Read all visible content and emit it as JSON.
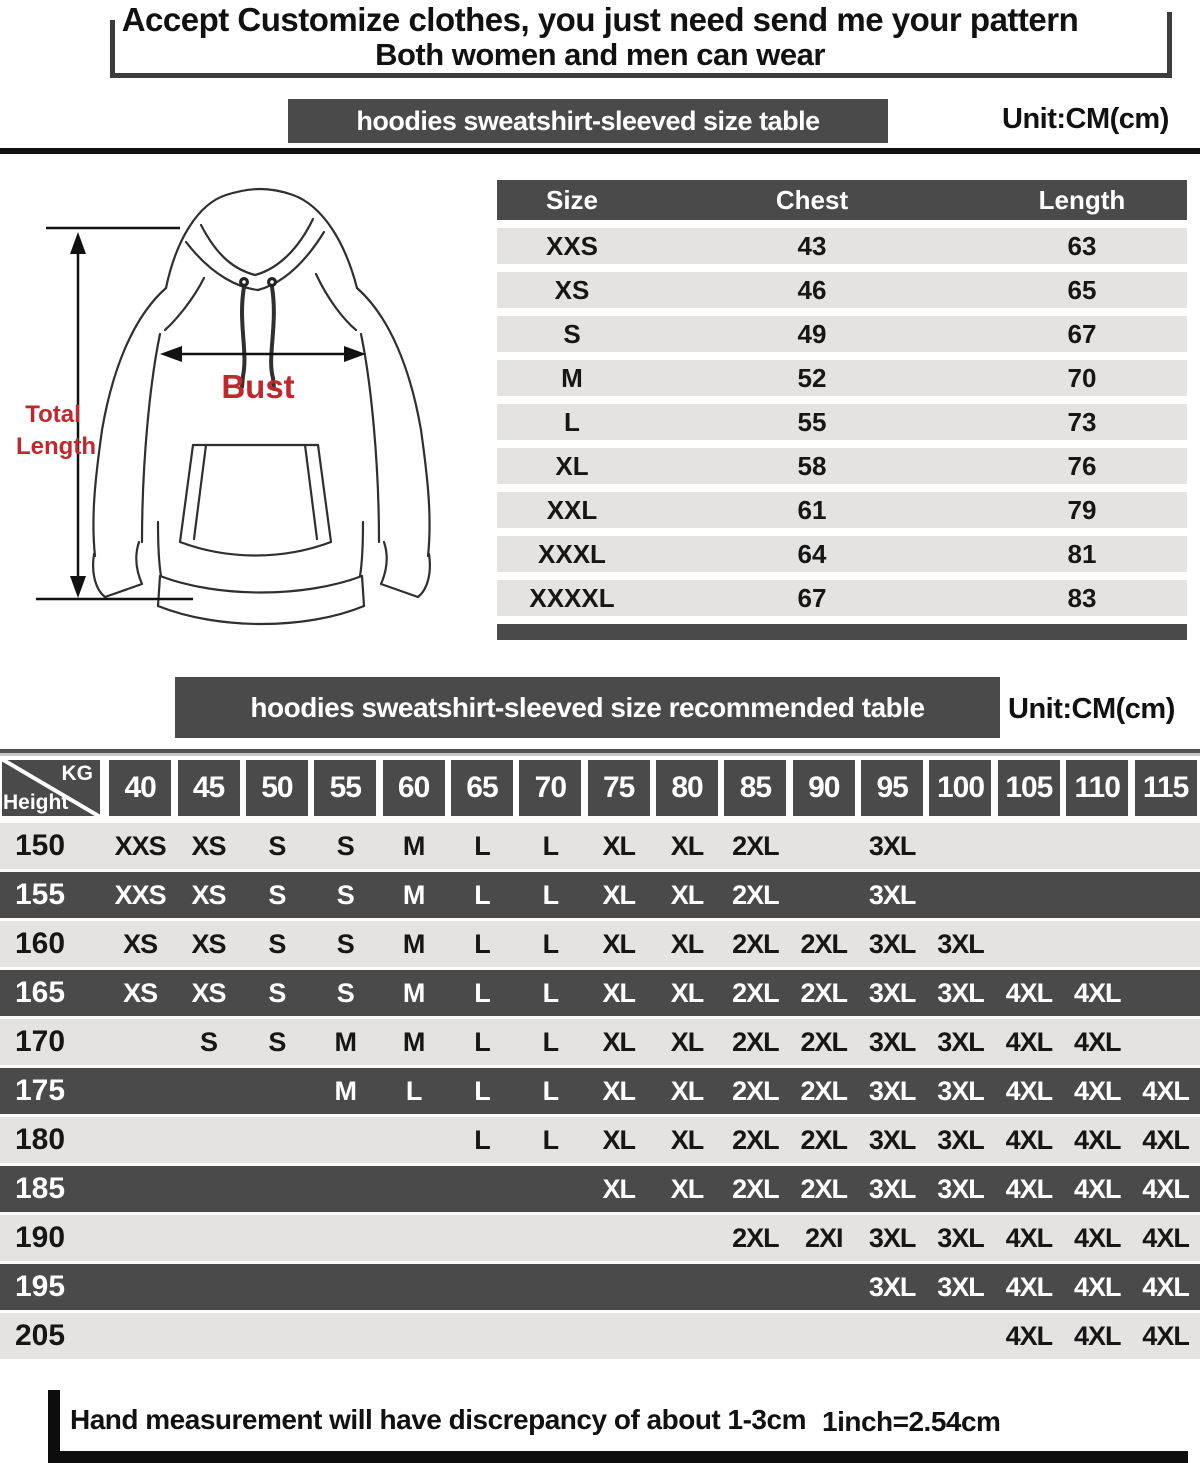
{
  "header": {
    "line1": "Accept Customize clothes, you just need send me your pattern",
    "line2": "Both women and men can wear"
  },
  "size_table_section": {
    "banner": "hoodies sweatshirt-sleeved size  table",
    "unit": "Unit:CM(cm)"
  },
  "diagram": {
    "bust_label": "Bust",
    "total_length_line1": "Total",
    "total_length_line2": "Length"
  },
  "size_table": {
    "columns": [
      "Size",
      "Chest",
      "Length"
    ],
    "rows": [
      [
        "XXS",
        "43",
        "63"
      ],
      [
        "XS",
        "46",
        "65"
      ],
      [
        "S",
        "49",
        "67"
      ],
      [
        "M",
        "52",
        "70"
      ],
      [
        "L",
        "55",
        "73"
      ],
      [
        "XL",
        "58",
        "76"
      ],
      [
        "XXL",
        "61",
        "79"
      ],
      [
        "XXXL",
        "64",
        "81"
      ],
      [
        "XXXXL",
        "67",
        "83"
      ]
    ]
  },
  "recommend_section": {
    "banner": "hoodies sweatshirt-sleeved size recommended table",
    "unit": "Unit:CM(cm)"
  },
  "recommend_table": {
    "corner_top": "KG",
    "corner_bottom": "Height",
    "weights": [
      "40",
      "45",
      "50",
      "55",
      "60",
      "65",
      "70",
      "75",
      "80",
      "85",
      "90",
      "95",
      "100",
      "105",
      "110",
      "115"
    ],
    "rows": [
      {
        "height": "150",
        "cells": [
          "XXS",
          "XS",
          "S",
          "S",
          "M",
          "L",
          "L",
          "XL",
          "XL",
          "2XL",
          "",
          "3XL",
          "",
          "",
          "",
          ""
        ]
      },
      {
        "height": "155",
        "cells": [
          "XXS",
          "XS",
          "S",
          "S",
          "M",
          "L",
          "L",
          "XL",
          "XL",
          "2XL",
          "",
          "3XL",
          "",
          "",
          "",
          ""
        ]
      },
      {
        "height": "160",
        "cells": [
          "XS",
          "XS",
          "S",
          "S",
          "M",
          "L",
          "L",
          "XL",
          "XL",
          "2XL",
          "2XL",
          "3XL",
          "3XL",
          "",
          "",
          ""
        ]
      },
      {
        "height": "165",
        "cells": [
          "XS",
          "XS",
          "S",
          "S",
          "M",
          "L",
          "L",
          "XL",
          "XL",
          "2XL",
          "2XL",
          "3XL",
          "3XL",
          "4XL",
          "4XL",
          ""
        ]
      },
      {
        "height": "170",
        "cells": [
          "",
          "S",
          "S",
          "M",
          "M",
          "L",
          "L",
          "XL",
          "XL",
          "2XL",
          "2XL",
          "3XL",
          "3XL",
          "4XL",
          "4XL",
          ""
        ]
      },
      {
        "height": "175",
        "cells": [
          "",
          "",
          "",
          "M",
          "L",
          "L",
          "L",
          "XL",
          "XL",
          "2XL",
          "2XL",
          "3XL",
          "3XL",
          "4XL",
          "4XL",
          "4XL"
        ]
      },
      {
        "height": "180",
        "cells": [
          "",
          "",
          "",
          "",
          "",
          "L",
          "L",
          "XL",
          "XL",
          "2XL",
          "2XL",
          "3XL",
          "3XL",
          "4XL",
          "4XL",
          "4XL"
        ]
      },
      {
        "height": "185",
        "cells": [
          "",
          "",
          "",
          "",
          "",
          "",
          "",
          "XL",
          "XL",
          "2XL",
          "2XL",
          "3XL",
          "3XL",
          "4XL",
          "4XL",
          "4XL"
        ]
      },
      {
        "height": "190",
        "cells": [
          "",
          "",
          "",
          "",
          "",
          "",
          "",
          "",
          "",
          "2XL",
          "2XI",
          "3XL",
          "3XL",
          "4XL",
          "4XL",
          "4XL"
        ]
      },
      {
        "height": "195",
        "cells": [
          "",
          "",
          "",
          "",
          "",
          "",
          "",
          "",
          "",
          "",
          "",
          "3XL",
          "3XL",
          "4XL",
          "4XL",
          "4XL"
        ]
      },
      {
        "height": "205",
        "cells": [
          "",
          "",
          "",
          "",
          "",
          "",
          "",
          "",
          "",
          "",
          "",
          "",
          "",
          "4XL",
          "4XL",
          "4XL"
        ]
      }
    ]
  },
  "footer": {
    "note": "Hand measurement will have discrepancy of about  1-3cm",
    "conversion": "1inch=2.54cm"
  },
  "colors": {
    "dark_gray": "#4a4a4a",
    "light_row": "#e4e3e1",
    "red": "#c0282d",
    "black": "#111111"
  }
}
